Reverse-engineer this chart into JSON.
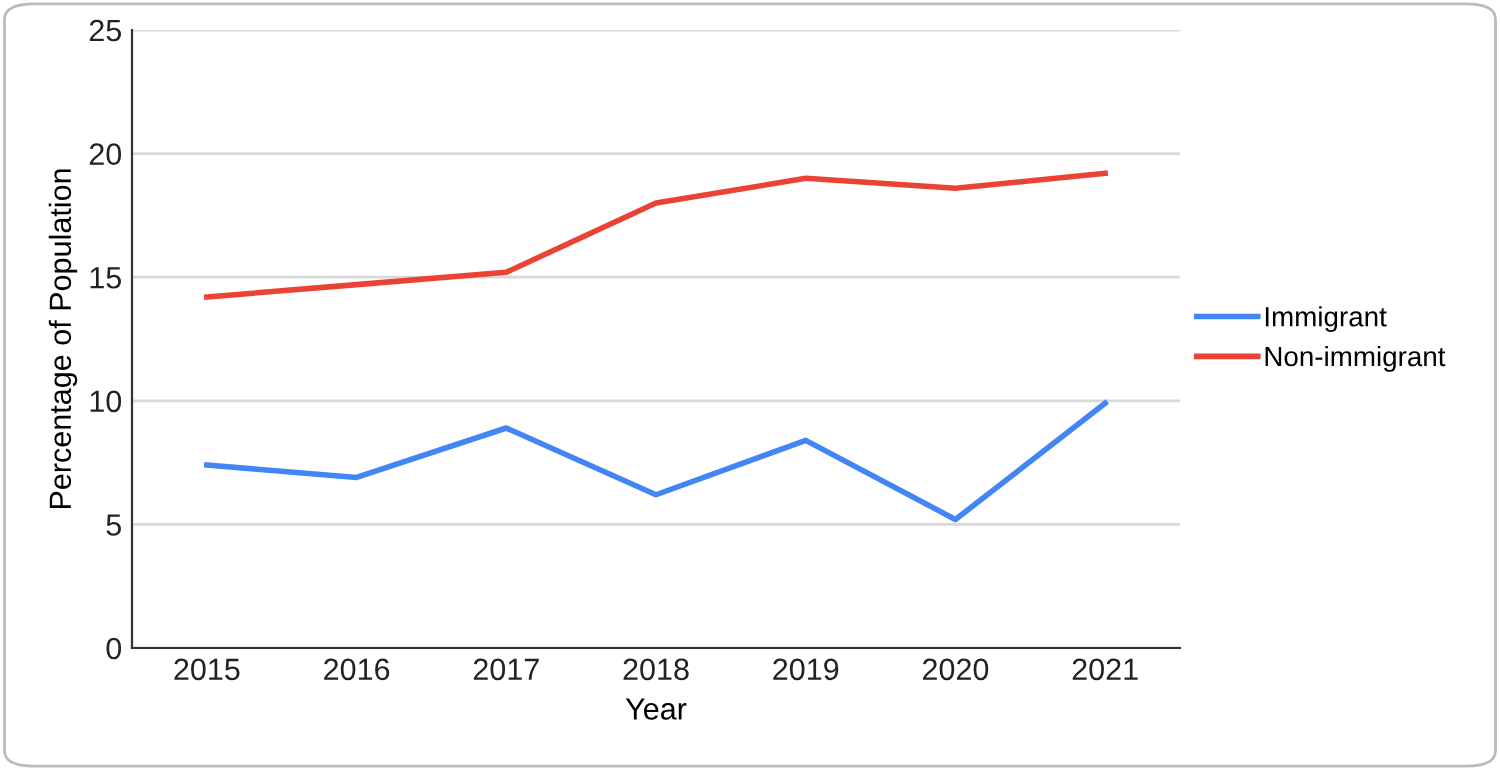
{
  "chart_data": {
    "type": "line",
    "xlabel": "Year",
    "ylabel": "Percentage of Population",
    "categories": [
      "2015",
      "2016",
      "2017",
      "2018",
      "2019",
      "2020",
      "2021"
    ],
    "series": [
      {
        "name": "Immigrant",
        "color": "#4285f4",
        "values": [
          7.4,
          6.9,
          8.9,
          6.2,
          8.4,
          5.2,
          9.9
        ]
      },
      {
        "name": "Non-immigrant",
        "color": "#ea4335",
        "values": [
          14.2,
          14.7,
          15.2,
          18.0,
          19.0,
          18.6,
          19.2
        ]
      }
    ],
    "ylim": [
      0,
      25
    ],
    "yticks": [
      0,
      5,
      10,
      15,
      20,
      25
    ],
    "grid": "y",
    "legend": "right",
    "marker": "none",
    "line_style": "solid"
  }
}
